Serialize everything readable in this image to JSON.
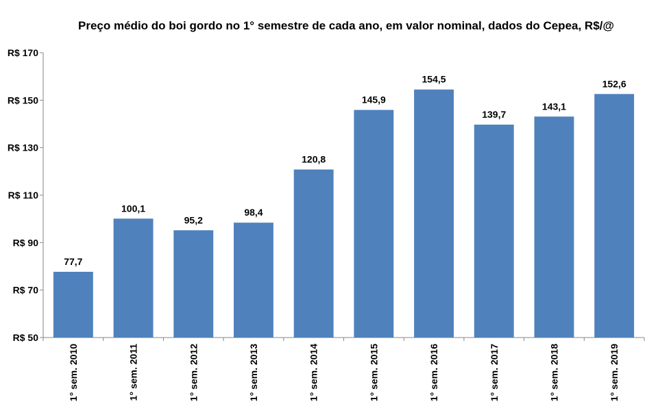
{
  "chart_data": {
    "type": "bar",
    "title": "Preço médio do boi gordo no 1° semestre de cada ano, em valor nominal, dados do Cepea, R$/@",
    "categories": [
      "1° sem. 2010",
      "1° sem. 2011",
      "1° sem. 2012",
      "1° sem. 2013",
      "1° sem. 2014",
      "1° sem. 2015",
      "1° sem. 2016",
      "1° sem. 2017",
      "1° sem. 2018",
      "1° sem. 2019"
    ],
    "values": [
      77.7,
      100.1,
      95.2,
      98.4,
      120.8,
      145.9,
      154.5,
      139.7,
      143.1,
      152.6
    ],
    "data_labels": [
      "77,7",
      "100,1",
      "95,2",
      "98,4",
      "120,8",
      "145,9",
      "154,5",
      "139,7",
      "143,1",
      "152,6"
    ],
    "yticks": [
      50,
      70,
      90,
      110,
      130,
      150,
      170
    ],
    "ytick_labels": [
      "R$ 50",
      "R$ 70",
      "R$ 90",
      "R$ 110",
      "R$ 130",
      "R$ 150",
      "R$ 170"
    ],
    "ylim": [
      50,
      170
    ],
    "xlabel": "",
    "ylabel": "",
    "grid": false,
    "legend": "none",
    "bar_color": "#4F81BD"
  }
}
